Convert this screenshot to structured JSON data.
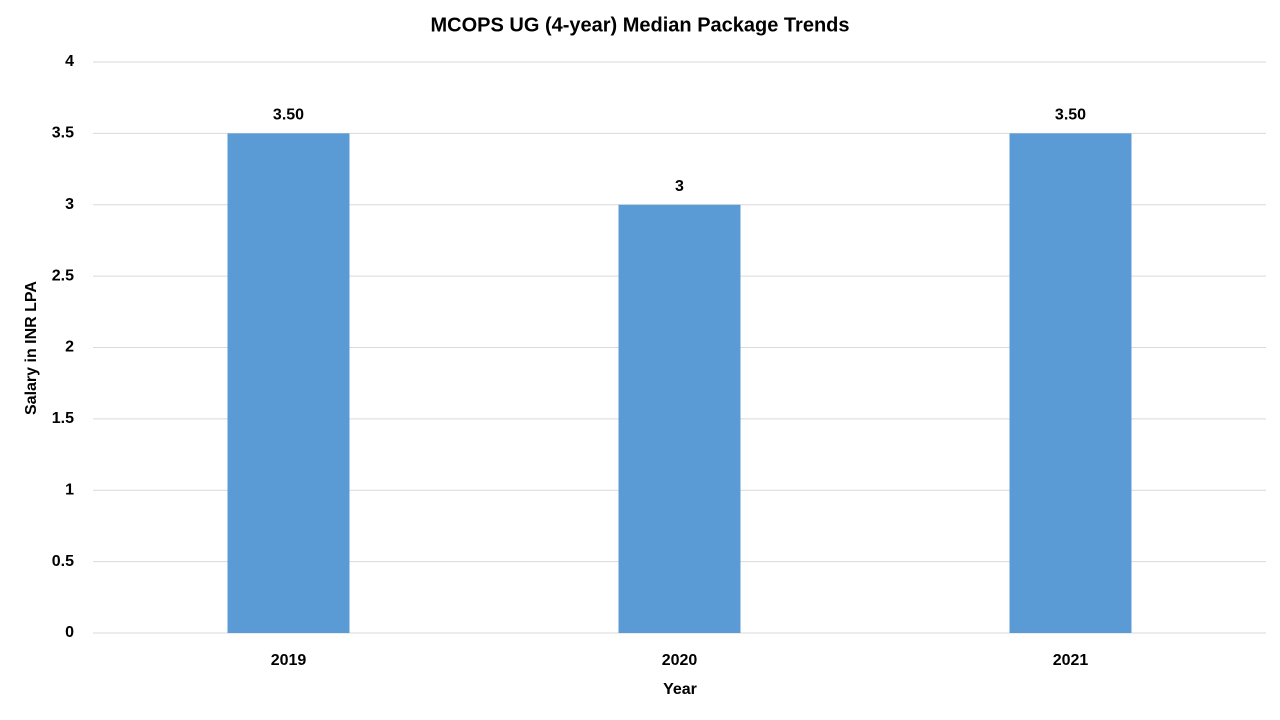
{
  "chart_data": {
    "type": "bar",
    "title": "MCOPS UG (4-year) Median Package Trends",
    "x_label": "Year",
    "y_label": "Salary in INR LPA",
    "categories": [
      "2019",
      "2020",
      "2021"
    ],
    "values": [
      3.5,
      3,
      3.5
    ],
    "value_labels": [
      "3.50",
      "3",
      "3.50"
    ],
    "color": "#5b9bd5",
    "ylim": [
      0,
      4
    ],
    "yticks": [
      0,
      0.5,
      1,
      1.5,
      2,
      2.5,
      3,
      3.5,
      4
    ],
    "grid": true
  }
}
